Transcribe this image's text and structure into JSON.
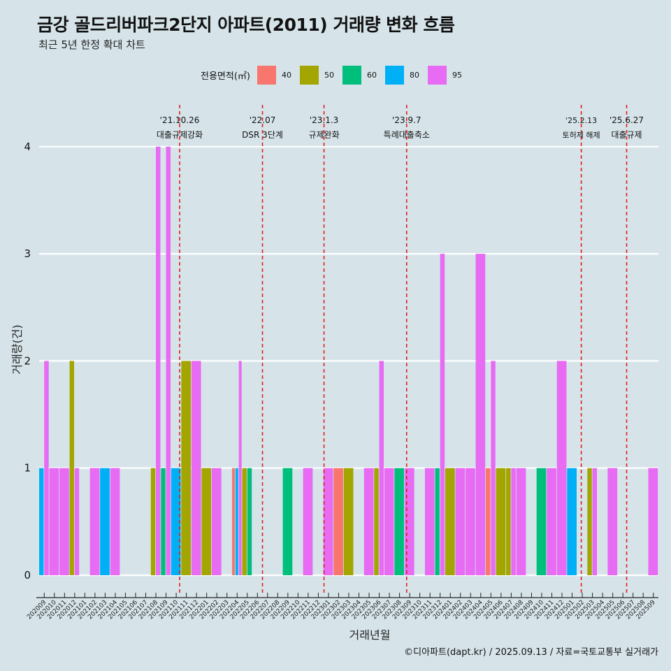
{
  "header": {
    "title": "금강 골드리버파크2단지 아파트(2011) 거래량 변화 흐름",
    "subtitle": "최근 5년 한정 확대 차트"
  },
  "legend": {
    "title": "전용면적(㎡)",
    "items": [
      {
        "label": "40",
        "color": "#f8766d"
      },
      {
        "label": "50",
        "color": "#a3a500"
      },
      {
        "label": "60",
        "color": "#00bf7d"
      },
      {
        "label": "80",
        "color": "#00b0f6"
      },
      {
        "label": "95",
        "color": "#e76bf3"
      }
    ]
  },
  "caption": "©디아파트(dapt.kr) / 2025.09.13 / 자료=국토교통부 실거래가",
  "chart_data": {
    "type": "bar",
    "xlabel": "거래년월",
    "ylabel": "거래량(건)",
    "ylim": [
      0,
      4
    ],
    "yticks": [
      0,
      1,
      2,
      3,
      4
    ],
    "grid": true,
    "legend_position": "top",
    "categories": [
      "202009",
      "202010",
      "202011",
      "202012",
      "202101",
      "202102",
      "202103",
      "202104",
      "202105",
      "202106",
      "202107",
      "202108",
      "202109",
      "202110",
      "202111",
      "202112",
      "202201",
      "202202",
      "202203",
      "202204",
      "202205",
      "202206",
      "202207",
      "202208",
      "202209",
      "202210",
      "202211",
      "202212",
      "202301",
      "202302",
      "202303",
      "202304",
      "202305",
      "202306",
      "202307",
      "202308",
      "202309",
      "202310",
      "202311",
      "202312",
      "202401",
      "202402",
      "202403",
      "202404",
      "202405",
      "202406",
      "202407",
      "202408",
      "202409",
      "202410",
      "202411",
      "202412",
      "202501",
      "202502",
      "202503",
      "202504",
      "202505",
      "202506",
      "202507",
      "202508",
      "202509"
    ],
    "series": [
      {
        "name": "40",
        "values": [
          0,
          0,
          0,
          0,
          0,
          0,
          0,
          0,
          0,
          0,
          0,
          0,
          0,
          0,
          0,
          0,
          0,
          0,
          0,
          1,
          0,
          0,
          0,
          0,
          0,
          0,
          0,
          0,
          0,
          1,
          0,
          0,
          0,
          0,
          0,
          0,
          0,
          0,
          0,
          0,
          0,
          0,
          0,
          0,
          1,
          0,
          0,
          0,
          0,
          0,
          0,
          0,
          0,
          0,
          0,
          0,
          0,
          0,
          0,
          0,
          0
        ]
      },
      {
        "name": "50",
        "values": [
          0,
          0,
          0,
          2,
          0,
          0,
          0,
          0,
          0,
          0,
          0,
          1,
          0,
          0,
          2,
          0,
          1,
          0,
          0,
          0,
          1,
          0,
          0,
          0,
          0,
          0,
          0,
          0,
          0,
          0,
          1,
          0,
          0,
          1,
          0,
          0,
          0,
          0,
          0,
          0,
          1,
          0,
          0,
          0,
          0,
          1,
          1,
          0,
          0,
          0,
          0,
          0,
          0,
          0,
          1,
          0,
          0,
          0,
          0,
          0,
          0
        ]
      },
      {
        "name": "60",
        "values": [
          0,
          0,
          0,
          0,
          0,
          0,
          0,
          0,
          0,
          0,
          0,
          0,
          1,
          0,
          0,
          0,
          0,
          0,
          0,
          0,
          1,
          0,
          0,
          0,
          1,
          0,
          0,
          0,
          0,
          0,
          0,
          0,
          0,
          0,
          0,
          1,
          0,
          0,
          0,
          1,
          0,
          0,
          0,
          0,
          0,
          0,
          0,
          0,
          0,
          1,
          0,
          0,
          0,
          0,
          0,
          0,
          0,
          0,
          0,
          0,
          0
        ]
      },
      {
        "name": "80",
        "values": [
          1,
          0,
          0,
          0,
          0,
          0,
          1,
          0,
          0,
          0,
          0,
          0,
          0,
          1,
          0,
          0,
          0,
          0,
          0,
          1,
          0,
          0,
          0,
          0,
          0,
          0,
          0,
          0,
          0,
          0,
          0,
          0,
          0,
          0,
          0,
          0,
          0,
          0,
          0,
          0,
          0,
          0,
          0,
          0,
          0,
          0,
          0,
          0,
          0,
          0,
          0,
          0,
          1,
          0,
          0,
          0,
          0,
          0,
          0,
          0,
          0
        ]
      },
      {
        "name": "95",
        "values": [
          2,
          1,
          1,
          1,
          0,
          1,
          0,
          1,
          0,
          0,
          0,
          4,
          4,
          0,
          0,
          2,
          0,
          1,
          0,
          2,
          0,
          0,
          0,
          0,
          0,
          0,
          1,
          0,
          1,
          0,
          0,
          0,
          1,
          2,
          1,
          0,
          1,
          0,
          1,
          3,
          0,
          1,
          1,
          3,
          2,
          0,
          1,
          1,
          0,
          0,
          1,
          2,
          0,
          0,
          1,
          0,
          1,
          0,
          0,
          0,
          1
        ]
      }
    ],
    "events": [
      {
        "date": "'21.10.26",
        "label": "대출규제강화",
        "after_category": "202110",
        "frac": 0.84
      },
      {
        "date": "'22.07",
        "label": "DSR 3단계",
        "after_category": "202207",
        "frac": 0.0
      },
      {
        "date": "'23.1.3",
        "label": "규제완화",
        "after_category": "202301",
        "frac": 0.06
      },
      {
        "date": "'23.9.7",
        "label": "특례대출축소",
        "after_category": "202309",
        "frac": 0.2
      },
      {
        "date": "'25.2.13",
        "label": "토허제 해제",
        "after_category": "202502",
        "frac": 0.4
      },
      {
        "date": "'25.6.27",
        "label": "대출규제",
        "after_category": "202506",
        "frac": 0.87
      }
    ]
  }
}
